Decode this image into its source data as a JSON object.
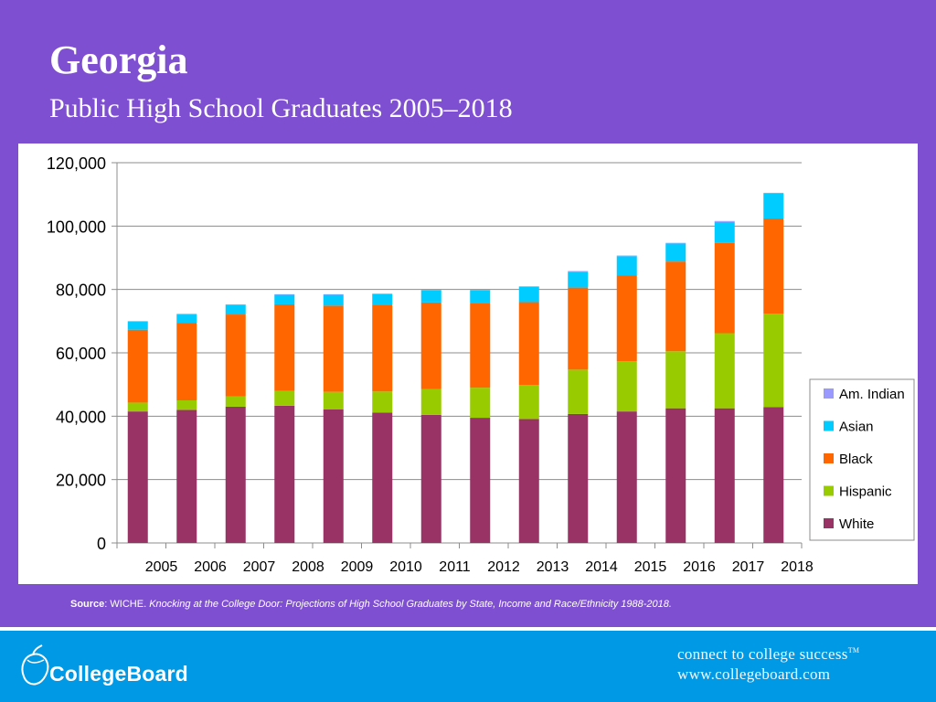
{
  "slide": {
    "title": "Georgia",
    "subtitle": "Public High School Graduates 2005–2018"
  },
  "source": {
    "label": "Source",
    "text_before": ":  WICHE.  ",
    "title": "Knocking at the College Door:  Projections of High School Graduates by State, Income and Race/Ethnicity  1988-2018."
  },
  "footer": {
    "brand": "CollegeBoard",
    "tagline_line1": "connect to college success",
    "tm": "TM",
    "tagline_line2": "www.collegeboard.com"
  },
  "colors": {
    "background": "#7f4fd1",
    "footer": "#0099e6",
    "White": "#993366",
    "Hispanic": "#99cc00",
    "Black": "#ff6600",
    "Asian": "#00ccff",
    "Am. Indian": "#9999ff"
  },
  "chart_data": {
    "type": "bar",
    "stacked": true,
    "categories": [
      "2005",
      "2006",
      "2007",
      "2008",
      "2009",
      "2010",
      "2011",
      "2012",
      "2013",
      "2014",
      "2015",
      "2016",
      "2017",
      "2018"
    ],
    "ylim": [
      0,
      120000
    ],
    "yticks": [
      "0",
      "20,000",
      "40,000",
      "60,000",
      "80,000",
      "100,000",
      "120,000"
    ],
    "ytick_values": [
      0,
      20000,
      40000,
      60000,
      80000,
      100000,
      120000
    ],
    "grid": true,
    "legend_position": "right",
    "series": [
      {
        "name": "White",
        "values": [
          41500,
          42000,
          43000,
          43300,
          42200,
          41100,
          40400,
          39500,
          39100,
          40700,
          41500,
          42500,
          42500,
          42900
        ]
      },
      {
        "name": "Hispanic",
        "values": [
          2800,
          3000,
          3300,
          4700,
          5500,
          6700,
          8200,
          9500,
          10800,
          14000,
          15900,
          18000,
          23700,
          29500
        ]
      },
      {
        "name": "Black",
        "values": [
          23000,
          24500,
          25800,
          27300,
          27200,
          27200,
          27300,
          26700,
          26100,
          25900,
          27100,
          28300,
          28500,
          30000
        ]
      },
      {
        "name": "Asian",
        "values": [
          2500,
          2600,
          3000,
          3000,
          3400,
          3500,
          3800,
          4000,
          4800,
          5000,
          6000,
          5700,
          6600,
          7800
        ]
      },
      {
        "name": "Am. Indian",
        "values": [
          200,
          200,
          200,
          200,
          200,
          200,
          200,
          200,
          200,
          200,
          200,
          200,
          300,
          300
        ]
      }
    ],
    "legend_order": [
      "Am. Indian",
      "Asian",
      "Black",
      "Hispanic",
      "White"
    ]
  }
}
